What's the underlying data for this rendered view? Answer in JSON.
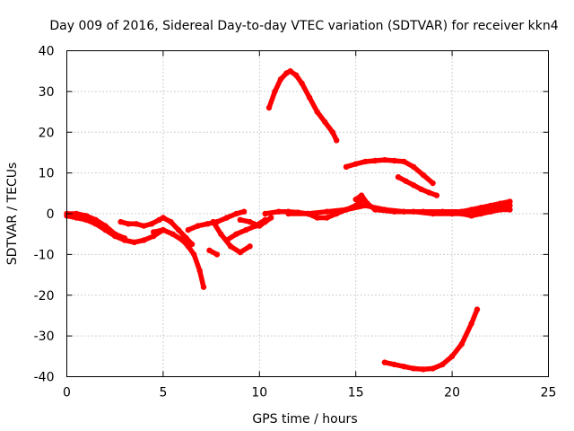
{
  "chart_data": {
    "type": "scatter",
    "title": "Day 009 of 2016, Sidereal Day-to-day VTEC variation (SDTVAR) for receiver kkn4",
    "xlabel": "GPS time / hours",
    "ylabel": "SDTVAR / TECUs",
    "xlim": [
      0,
      25
    ],
    "ylim": [
      -40,
      40
    ],
    "xticks": [
      "0",
      "5",
      "10",
      "15",
      "20",
      "25"
    ],
    "yticks": [
      "40",
      "30",
      "20",
      "10",
      "0",
      "-10",
      "-20",
      "-30",
      "-40"
    ],
    "grid": true,
    "color": "#ff0000",
    "series": [
      {
        "name": "arc-1",
        "x": [
          0,
          0.5,
          1,
          1.5,
          2,
          2.5,
          3,
          3.5,
          4,
          4.5,
          5
        ],
        "y": [
          -0.5,
          -1,
          -1.5,
          -2.5,
          -4,
          -5.5,
          -6.5,
          -7,
          -6.5,
          -5.5,
          -4
        ]
      },
      {
        "name": "arc-2",
        "x": [
          0,
          0.5,
          1,
          1.5,
          2,
          2.5,
          3
        ],
        "y": [
          0,
          0,
          -0.5,
          -1.5,
          -3,
          -5,
          -6
        ]
      },
      {
        "name": "arc-3",
        "x": [
          2.8,
          3.2,
          3.6,
          4,
          4.4,
          4.8,
          5,
          5.4,
          5.8,
          6.2,
          6.5
        ],
        "y": [
          -2,
          -2.5,
          -2.5,
          -3,
          -2.5,
          -1.5,
          -1,
          -2,
          -4,
          -6,
          -7.5
        ]
      },
      {
        "name": "arc-4",
        "x": [
          4.5,
          5,
          5.5,
          6,
          6.3,
          6.6,
          6.9,
          7.1
        ],
        "y": [
          -4.5,
          -4,
          -5,
          -6.5,
          -8,
          -10,
          -14,
          -18
        ]
      },
      {
        "name": "arc-5",
        "x": [
          6.3,
          6.8,
          7.3,
          7.8,
          8.3,
          8.8,
          9.2
        ],
        "y": [
          -4,
          -3,
          -2.5,
          -2,
          -1,
          0,
          0.5
        ]
      },
      {
        "name": "arc-6",
        "x": [
          7.6,
          8,
          8.5,
          9,
          9.5
        ],
        "y": [
          -2,
          -5,
          -8,
          -9.5,
          -8
        ]
      },
      {
        "name": "arc-7",
        "x": [
          8.3,
          8.8,
          9.3,
          9.8,
          10.3
        ],
        "y": [
          -6.5,
          -5,
          -4,
          -3,
          -1.5
        ]
      },
      {
        "name": "arc-8",
        "x": [
          7.4,
          7.8
        ],
        "y": [
          -9,
          -10
        ]
      },
      {
        "name": "arc-9",
        "x": [
          9,
          9.5,
          10,
          10.3,
          10.6
        ],
        "y": [
          -1.5,
          -2,
          -3,
          -2,
          -1
        ]
      },
      {
        "name": "arc-10",
        "x": [
          10.3,
          11,
          11.5,
          12,
          12.5,
          13,
          13.5,
          14,
          14.5,
          15,
          15.3
        ],
        "y": [
          0,
          0.5,
          0.5,
          0.3,
          0,
          -1,
          -1,
          0,
          1,
          2,
          3
        ]
      },
      {
        "name": "arc-11",
        "x": [
          11.5,
          12.5,
          13.5,
          14.5,
          15.5,
          16.5,
          17.5,
          18.5,
          19.5,
          20.5,
          21.5,
          22.5,
          23
        ],
        "y": [
          0,
          0,
          0.5,
          1,
          2,
          1,
          0.5,
          0.5,
          0.5,
          0.5,
          1,
          1.5,
          2
        ]
      },
      {
        "name": "arc-12",
        "x": [
          15,
          15.3,
          15.6,
          16,
          17,
          18,
          19,
          20,
          20.5,
          21,
          21.5,
          22,
          22.5,
          23
        ],
        "y": [
          3.5,
          4.5,
          2.5,
          1,
          0.5,
          0.5,
          0,
          0,
          0,
          -0.5,
          0,
          0.5,
          1,
          1
        ]
      },
      {
        "name": "arc-13",
        "x": [
          20.5,
          21,
          21.5,
          22,
          22.5,
          23
        ],
        "y": [
          0.5,
          1,
          1.5,
          2,
          2.5,
          3
        ]
      },
      {
        "name": "arc-14",
        "x": [
          10.5,
          10.8,
          11.1,
          11.4,
          11.6,
          11.9,
          12.2,
          12.6,
          13,
          13.4,
          13.8,
          14
        ],
        "y": [
          26,
          30,
          33,
          34.5,
          35,
          34,
          32,
          28.5,
          25,
          22.5,
          20,
          18
        ]
      },
      {
        "name": "arc-15",
        "x": [
          14.5,
          15,
          15.5,
          16,
          16.5,
          17,
          17.5,
          18,
          18.5,
          19
        ],
        "y": [
          11.5,
          12.2,
          12.8,
          13,
          13.2,
          13,
          12.8,
          11.5,
          9.5,
          7.5
        ]
      },
      {
        "name": "arc-16",
        "x": [
          17.2,
          17.6,
          18,
          18.4,
          18.8,
          19.2
        ],
        "y": [
          9,
          8,
          7,
          6,
          5.2,
          4.5
        ]
      },
      {
        "name": "arc-17",
        "x": [
          16.5,
          17,
          17.5,
          18,
          18.5,
          19,
          19.5,
          20,
          20.5,
          21,
          21.3
        ],
        "y": [
          -36.5,
          -37,
          -37.5,
          -38,
          -38.2,
          -38,
          -37,
          -35,
          -32,
          -27,
          -23.5
        ]
      }
    ]
  }
}
